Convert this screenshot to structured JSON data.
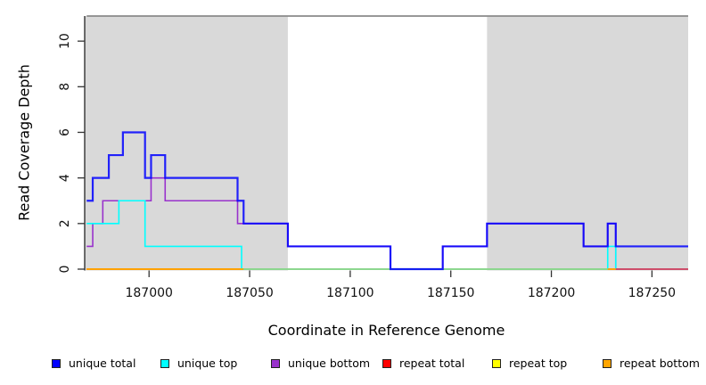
{
  "chart_data": {
    "type": "line",
    "subtype": "step",
    "title": "",
    "xlabel": "Coordinate in Reference Genome",
    "ylabel": "Read Coverage Depth",
    "xlim": [
      186968,
      187268
    ],
    "ylim": [
      0,
      11.1
    ],
    "xticks": [
      187000,
      187050,
      187100,
      187150,
      187200,
      187250
    ],
    "yticks": [
      0,
      2,
      4,
      6,
      8,
      10
    ],
    "grid": false,
    "legend_position": "bottom",
    "colors": {
      "shaded_region": "#d9d9d9",
      "axis": "#333333",
      "tick_label": "#111111"
    },
    "top_line": {
      "y": 11.1,
      "color": "#8a8a8a"
    },
    "shaded_regions": [
      {
        "x1": 186968,
        "x2": 187069,
        "meaning": "repeat region"
      },
      {
        "x1": 187168,
        "x2": 187268,
        "meaning": "repeat region"
      }
    ],
    "series": [
      {
        "name": "unique total",
        "color": "#0000ff",
        "steps": [
          [
            186969,
            3
          ],
          [
            186972,
            4
          ],
          [
            186980,
            5
          ],
          [
            186987,
            6
          ],
          [
            186998,
            4
          ],
          [
            187001,
            5
          ],
          [
            187008,
            4
          ],
          [
            187044,
            3
          ],
          [
            187047,
            2
          ],
          [
            187069,
            1
          ],
          [
            187120,
            0
          ],
          [
            187146,
            1
          ],
          [
            187168,
            2
          ],
          [
            187216,
            1
          ],
          [
            187228,
            2
          ],
          [
            187232,
            1
          ],
          [
            187268,
            1
          ]
        ]
      },
      {
        "name": "unique top",
        "color": "#00ffff",
        "steps": [
          [
            186969,
            2
          ],
          [
            186985,
            3
          ],
          [
            186998,
            1
          ],
          [
            187046,
            0
          ],
          [
            187228,
            1
          ],
          [
            187232,
            0
          ],
          [
            187268,
            0
          ]
        ]
      },
      {
        "name": "unique bottom",
        "color": "#9932cc",
        "steps": [
          [
            186969,
            1
          ],
          [
            186972,
            2
          ],
          [
            186977,
            3
          ],
          [
            187001,
            4
          ],
          [
            187008,
            3
          ],
          [
            187044,
            2
          ],
          [
            187069,
            1
          ],
          [
            187120,
            0
          ],
          [
            187146,
            1
          ],
          [
            187168,
            2
          ],
          [
            187216,
            1
          ],
          [
            187228,
            2
          ],
          [
            187232,
            0
          ],
          [
            187268,
            0
          ]
        ]
      },
      {
        "name": "repeat total",
        "color": "#ff0000",
        "steps": [
          [
            186969,
            0
          ],
          [
            187268,
            0
          ]
        ]
      },
      {
        "name": "repeat top",
        "color": "#ffff00",
        "steps": [
          [
            186969,
            0
          ],
          [
            187268,
            0
          ]
        ]
      },
      {
        "name": "repeat bottom",
        "color": "#ffa500",
        "steps": [
          [
            186969,
            0
          ],
          [
            187268,
            0
          ]
        ]
      }
    ],
    "baseline_segments": [
      {
        "x1": 186969,
        "x2": 187047,
        "color": "#ffa500"
      },
      {
        "x1": 187047,
        "x2": 187228,
        "color": "#8fd98f"
      },
      {
        "x1": 187228,
        "x2": 187232,
        "color": "#ffa500"
      },
      {
        "x1": 187232,
        "x2": 187268,
        "color": "#dd4060"
      }
    ],
    "legend": [
      {
        "label": "unique total",
        "color": "#0000ff"
      },
      {
        "label": "unique top",
        "color": "#00ffff"
      },
      {
        "label": "unique bottom",
        "color": "#9932cc"
      },
      {
        "label": "repeat total",
        "color": "#ff0000"
      },
      {
        "label": "repeat top",
        "color": "#ffff00"
      },
      {
        "label": "repeat bottom",
        "color": "#ffa500"
      }
    ]
  }
}
